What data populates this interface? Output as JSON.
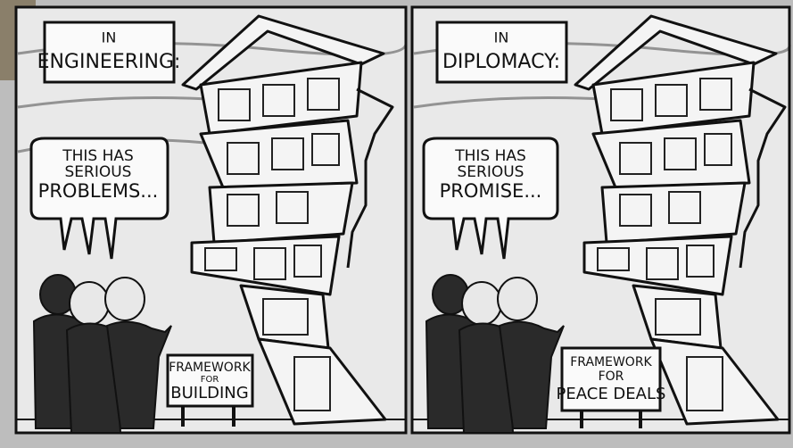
{
  "panels": [
    {
      "caption": [
        "IN",
        "ENGINEERING:"
      ],
      "speech": [
        "THIS HAS",
        "SERIOUS",
        "PROBLEMS..."
      ],
      "sign": [
        "FRAMEWORK",
        "FOR",
        "BUILDING"
      ]
    },
    {
      "caption": [
        "IN",
        "DIPLOMACY:"
      ],
      "speech": [
        "THIS HAS",
        "SERIOUS",
        "PROMISE..."
      ],
      "sign": [
        "FRAMEWORK",
        "FOR",
        "PEACE DEALS"
      ]
    }
  ]
}
